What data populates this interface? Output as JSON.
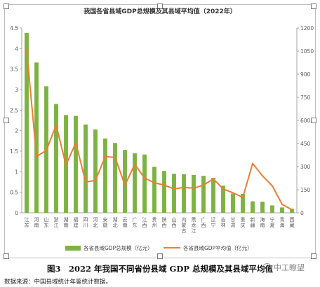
{
  "chart_data": {
    "type": "bar+line",
    "title": "我国各省县域GDP总规模及其县域平均值（2022年）",
    "categories": [
      "江苏",
      "河南",
      "山东",
      "浙江",
      "湖南",
      "福建",
      "四川",
      "河北",
      "安徽",
      "湖北",
      "云南",
      "广东",
      "江西",
      "贵州",
      "陕西",
      "山西",
      "内蒙古",
      "黑龙江",
      "广西",
      "辽宁",
      "吉林",
      "甘肃",
      "重庆",
      "新疆",
      "海南",
      "宁夏",
      "青海",
      "西藏"
    ],
    "y_left_ticks": [
      "0",
      "0.5",
      "1",
      "1.5",
      "2",
      "2.5",
      "3",
      "3.5",
      "4",
      "4.5"
    ],
    "y_right_ticks": [
      "0",
      "150",
      "300",
      "450",
      "600",
      "750",
      "900",
      "1050",
      "1200"
    ],
    "ylim_left": [
      0,
      4.5
    ],
    "ylim_right": [
      0,
      1200
    ],
    "series": [
      {
        "name": "各省县域GDP总规模（亿元）",
        "type": "bar",
        "axis": "left",
        "color": "#7cb342",
        "values": [
          4.38,
          3.66,
          3.08,
          2.65,
          2.38,
          2.36,
          2.15,
          2.03,
          1.81,
          1.7,
          1.53,
          1.45,
          1.42,
          1.12,
          1.02,
          0.95,
          0.94,
          0.92,
          0.9,
          0.85,
          0.66,
          0.47,
          0.46,
          0.28,
          0.27,
          0.18,
          0.13,
          0.1
        ]
      },
      {
        "name": "各省县域GDP平均值（亿元）",
        "type": "line",
        "axis": "right",
        "color": "#ed7d31",
        "values": [
          1060,
          365,
          405,
          570,
          310,
          455,
          200,
          210,
          365,
          360,
          180,
          315,
          225,
          195,
          180,
          155,
          165,
          160,
          180,
          220,
          155,
          130,
          100,
          320,
          240,
          175,
          55,
          20
        ]
      }
    ],
    "legend_position": "bottom",
    "grid": false
  },
  "caption": "图3　2022 年我国不同省份县域 GDP 总规模及其县域平均值",
  "source": "数据来源：中国县域统计年鉴统计数据。",
  "watermark": "中工瞭望"
}
